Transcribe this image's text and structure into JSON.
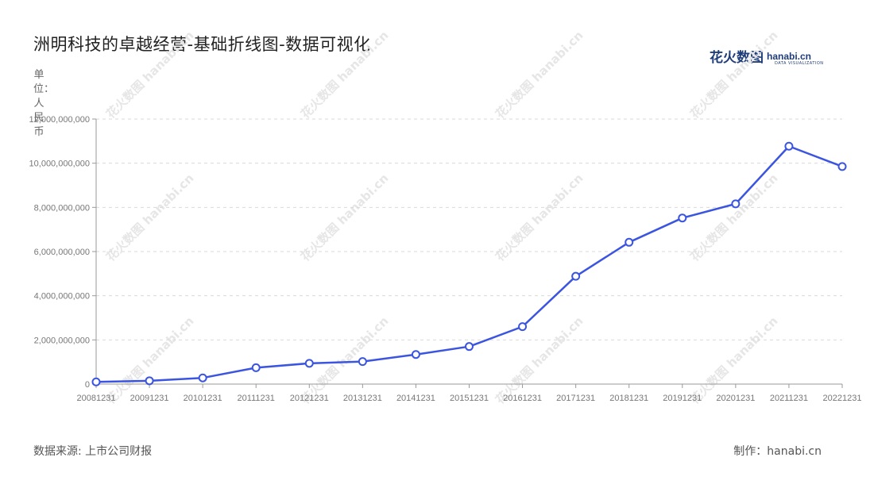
{
  "chart_data": {
    "type": "line",
    "title": "洲明科技的卓越经营-基础折线图-数据可视化",
    "ylabel": "单位：人民币",
    "x": [
      "20081231",
      "20091231",
      "20101231",
      "20111231",
      "20121231",
      "20131231",
      "20141231",
      "20151231",
      "20161231",
      "20171231",
      "20181231",
      "20191231",
      "20201231",
      "20211231",
      "20221231"
    ],
    "values": [
      100000000,
      150000000,
      280000000,
      740000000,
      940000000,
      1020000000,
      1340000000,
      1700000000,
      2600000000,
      4880000000,
      6420000000,
      7520000000,
      8160000000,
      10770000000,
      9850000000
    ],
    "ylim": [
      0,
      12000000000
    ],
    "yticks": [
      "0",
      "2,000,000,000",
      "4,000,000,000",
      "6,000,000,000",
      "8,000,000,000",
      "10,000,000,000",
      "12,000,000,000"
    ],
    "grid": true,
    "line_color": "#3b55e0"
  },
  "logo": {
    "cn": "花火数图",
    "en": "hanabi.cn",
    "sub": "DATA VISUALIZATION"
  },
  "watermark": "花火数图 hanabi.cn",
  "footer": {
    "source": "数据来源: 上市公司财报",
    "credit": "制作：hanabi.cn"
  }
}
